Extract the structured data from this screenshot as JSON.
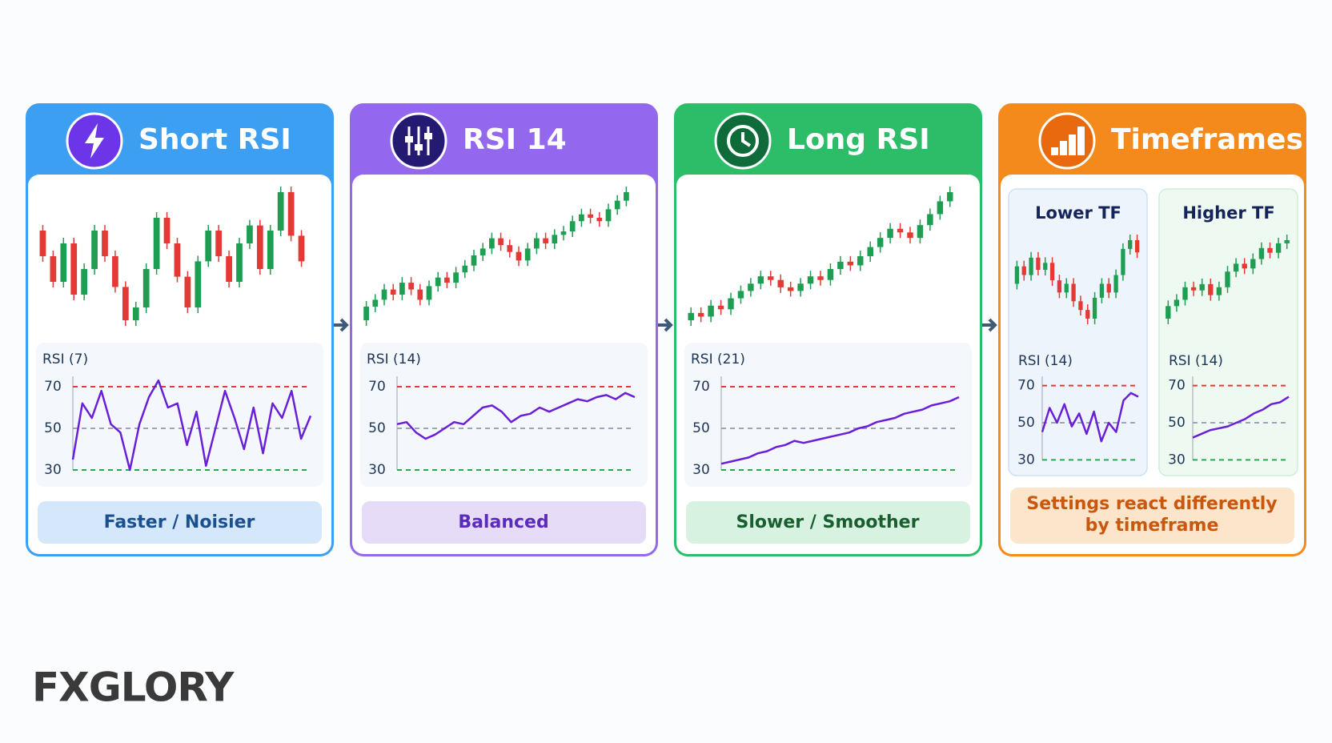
{
  "panels": [
    {
      "title": "Short RSI",
      "color": "#3d9ff2",
      "rsi_label": "RSI (7)",
      "footer": "Faster / Noisier",
      "prices": [
        60,
        50,
        40,
        55,
        35,
        45,
        60,
        50,
        38,
        25,
        30,
        45,
        65,
        55,
        42,
        30,
        48,
        60,
        50,
        40,
        55,
        62,
        45,
        60,
        75,
        58,
        48
      ],
      "rsi": [
        35,
        62,
        55,
        68,
        52,
        48,
        30,
        52,
        65,
        73,
        60,
        62,
        42,
        58,
        32,
        50,
        68,
        55,
        40,
        60,
        38,
        62,
        55,
        68,
        45,
        56
      ]
    },
    {
      "title": "RSI 14",
      "color": "#9468ee",
      "rsi_label": "RSI (14)",
      "footer": "Balanced",
      "prices": [
        10,
        18,
        22,
        28,
        25,
        32,
        28,
        22,
        30,
        35,
        32,
        38,
        42,
        48,
        52,
        58,
        54,
        50,
        45,
        52,
        58,
        55,
        60,
        62,
        68,
        72,
        70,
        68,
        75,
        80,
        85
      ],
      "rsi": [
        52,
        53,
        48,
        45,
        47,
        50,
        53,
        52,
        56,
        60,
        61,
        58,
        53,
        56,
        57,
        60,
        58,
        60,
        62,
        64,
        63,
        65,
        66,
        64,
        67,
        65
      ]
    },
    {
      "title": "Long RSI",
      "color": "#2dbd68",
      "rsi_label": "RSI (21)",
      "footer": "Slower / Smoother",
      "prices": [
        10,
        14,
        12,
        18,
        16,
        22,
        26,
        30,
        34,
        32,
        28,
        26,
        30,
        34,
        32,
        38,
        42,
        40,
        45,
        50,
        55,
        60,
        58,
        55,
        62,
        68,
        75,
        80
      ],
      "rsi": [
        33,
        34,
        35,
        36,
        38,
        39,
        41,
        42,
        44,
        43,
        44,
        45,
        46,
        47,
        48,
        50,
        51,
        53,
        54,
        55,
        57,
        58,
        59,
        61,
        62,
        63,
        65
      ]
    }
  ],
  "timeframes": {
    "title": "Timeframes",
    "color": "#f48a1c",
    "footer": [
      "Settings react differently",
      "by timeframe"
    ],
    "subpanels": [
      {
        "title": "Lower TF",
        "rsi_label": "RSI (14)",
        "prices": [
          50,
          60,
          55,
          65,
          58,
          62,
          52,
          45,
          50,
          40,
          35,
          30,
          42,
          50,
          45,
          55,
          70,
          75,
          68
        ],
        "rsi": [
          45,
          58,
          50,
          60,
          48,
          55,
          44,
          56,
          40,
          50,
          45,
          62,
          66,
          64
        ]
      },
      {
        "title": "Higher TF",
        "rsi_label": "RSI (14)",
        "prices": [
          10,
          18,
          22,
          30,
          28,
          32,
          25,
          30,
          40,
          45,
          42,
          48,
          55,
          52,
          58,
          60
        ],
        "rsi": [
          42,
          44,
          46,
          47,
          48,
          50,
          52,
          55,
          57,
          60,
          61,
          64
        ]
      }
    ]
  },
  "rsi_axis": {
    "ylim": [
      25,
      75
    ],
    "yticks": [
      30,
      50,
      70
    ],
    "line_colors": [
      "#2aa84a",
      "#9aa5b5",
      "#e53935"
    ]
  },
  "rsi_color": "#6a1fd8",
  "up_color": "#1e9e52",
  "down_color": "#e53935",
  "logo": "FXGLORY"
}
